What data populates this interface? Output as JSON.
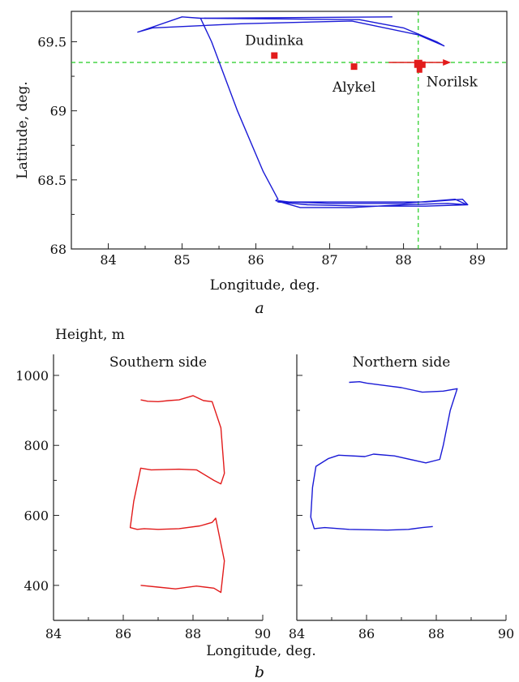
{
  "chart_data": [
    {
      "type": "line",
      "panel_label": "a",
      "xlabel": "Longitude, deg.",
      "ylabel": "Latitude, deg.",
      "xlim": [
        83.5,
        89.4
      ],
      "ylim": [
        68,
        69.72
      ],
      "xticks": [
        84,
        85,
        86,
        87,
        88,
        89
      ],
      "yticks": [
        68,
        68.5,
        69,
        69.5
      ],
      "xtick_labels": [
        "84",
        "85",
        "86",
        "87",
        "88",
        "89"
      ],
      "ytick_labels": [
        "68",
        "68.5",
        "69",
        "69.5"
      ],
      "colors": {
        "track": "#1a1ad6",
        "points": "#e21b1b",
        "guides": "#22cc22"
      },
      "reference_lines": {
        "longitude": 88.2,
        "latitude": 69.35
      },
      "locations": [
        {
          "name": "Dudinka",
          "x": 86.25,
          "y": 69.4,
          "label_pos": "above"
        },
        {
          "name": "Alykel",
          "x": 87.33,
          "y": 69.32,
          "label_pos": "below"
        },
        {
          "name": "Norilsk",
          "x": 88.2,
          "y": 69.34,
          "label_pos": "below-right"
        }
      ],
      "series": [
        {
          "x": [
            87.85,
            85.25,
            85.4,
            85.75,
            86.1,
            86.3,
            86.27,
            86.6,
            87.3,
            88.0,
            88.6,
            88.87,
            88.8,
            88.3,
            87.5,
            86.75,
            86.3,
            86.7,
            87.5,
            88.3,
            88.86,
            88.7,
            88.0,
            87.0,
            86.45,
            86.3
          ],
          "y": [
            69.68,
            69.67,
            69.5,
            69.0,
            68.56,
            68.36,
            68.35,
            68.3,
            68.3,
            68.32,
            68.33,
            68.32,
            68.36,
            68.34,
            68.34,
            68.34,
            68.34,
            68.32,
            68.31,
            68.31,
            68.32,
            68.36,
            68.33,
            68.33,
            68.34,
            68.35
          ]
        },
        {
          "x": [
            85.25,
            85.0,
            84.4,
            84.6,
            85.8,
            87.3,
            88.2,
            88.55,
            88.45,
            88.0,
            87.4,
            85.3
          ],
          "y": [
            69.67,
            69.68,
            69.57,
            69.6,
            69.63,
            69.65,
            69.55,
            69.47,
            69.5,
            69.6,
            69.66,
            69.67
          ]
        },
        {
          "x": [
            87.8,
            88.6
          ],
          "y": [
            69.35,
            69.35
          ]
        }
      ]
    },
    {
      "type": "line",
      "panel_label": "b",
      "title": "Southern side",
      "xlabel": "Longitude, deg.",
      "ylabel": "Height, m",
      "xlim": [
        84,
        90
      ],
      "ylim": [
        300,
        1060
      ],
      "xticks": [
        84,
        86,
        88,
        90
      ],
      "yticks": [
        400,
        600,
        800,
        1000
      ],
      "xtick_labels": [
        "84",
        "86",
        "88",
        "90"
      ],
      "ytick_labels": [
        "400",
        "600",
        "800",
        "1000"
      ],
      "colors": {
        "line": "#e21b1b"
      },
      "series": [
        {
          "x": [
            86.5,
            86.7,
            87.0,
            87.3,
            87.6,
            88.0,
            88.3,
            88.55,
            88.8,
            88.9,
            88.8,
            88.6,
            88.1,
            87.6,
            86.8,
            86.5,
            86.3,
            86.2,
            86.4,
            86.6,
            87.0,
            87.6,
            88.2,
            88.55,
            88.65,
            88.9,
            88.8,
            88.6,
            88.1,
            87.5,
            87.0,
            86.5
          ],
          "y": [
            930,
            926,
            925,
            928,
            930,
            942,
            928,
            925,
            850,
            720,
            690,
            700,
            730,
            732,
            730,
            735,
            640,
            565,
            560,
            562,
            560,
            562,
            570,
            580,
            592,
            470,
            380,
            392,
            398,
            390,
            395,
            400
          ]
        }
      ]
    },
    {
      "type": "line",
      "title": "Northern side",
      "xlim": [
        84,
        90
      ],
      "ylim": [
        300,
        1060
      ],
      "xticks": [
        84,
        86,
        88,
        90
      ],
      "xtick_labels": [
        "84",
        "86",
        "88",
        "90"
      ],
      "colors": {
        "line": "#1a1ad6"
      },
      "series": [
        {
          "x": [
            85.5,
            85.8,
            86.0,
            86.6,
            87.0,
            87.6,
            88.2,
            88.6,
            88.4,
            88.2,
            88.1,
            87.7,
            86.8,
            86.2,
            85.95,
            85.2,
            84.9,
            84.55,
            84.45,
            84.4,
            84.5,
            84.8,
            85.5,
            86.6,
            87.2,
            87.6,
            87.9
          ],
          "y": [
            980,
            982,
            978,
            970,
            965,
            952,
            955,
            962,
            900,
            800,
            760,
            750,
            770,
            775,
            768,
            772,
            762,
            740,
            680,
            595,
            562,
            565,
            560,
            558,
            560,
            565,
            568
          ]
        }
      ]
    }
  ]
}
